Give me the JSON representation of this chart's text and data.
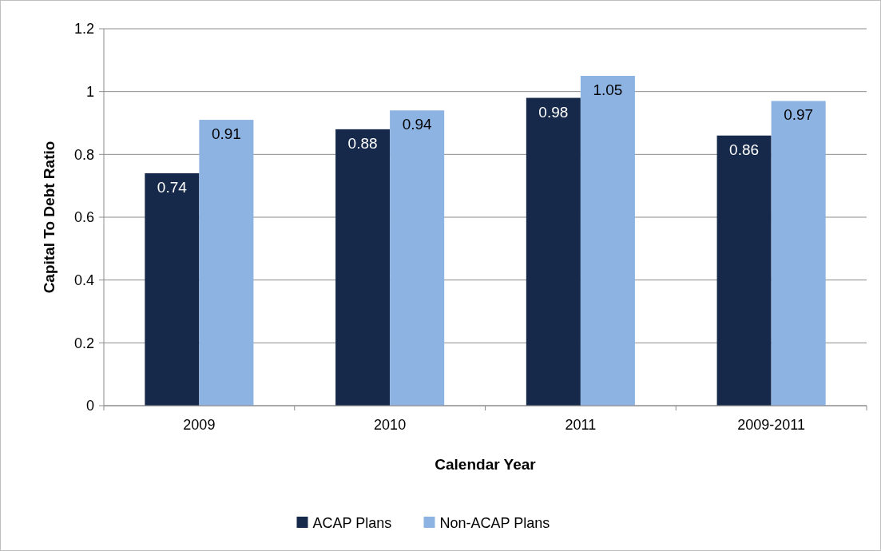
{
  "chart_data": {
    "type": "bar",
    "xlabel": "Calendar Year",
    "ylabel": "Capital To Debt Ratio",
    "categories": [
      "2009",
      "2010",
      "2011",
      "2009-2011"
    ],
    "series": [
      {
        "name": "ACAP Plans",
        "color": "#17294a",
        "values": [
          0.74,
          0.88,
          0.98,
          0.86
        ]
      },
      {
        "name": "Non-ACAP Plans",
        "color": "#8db3e2",
        "values": [
          0.91,
          0.94,
          1.05,
          0.97
        ]
      }
    ],
    "ylim": [
      0,
      1.2
    ],
    "yticks": [
      0,
      0.2,
      0.4,
      0.6,
      0.8,
      1,
      1.2
    ],
    "grid": "y",
    "legend": "bottom",
    "data_labels": true
  }
}
